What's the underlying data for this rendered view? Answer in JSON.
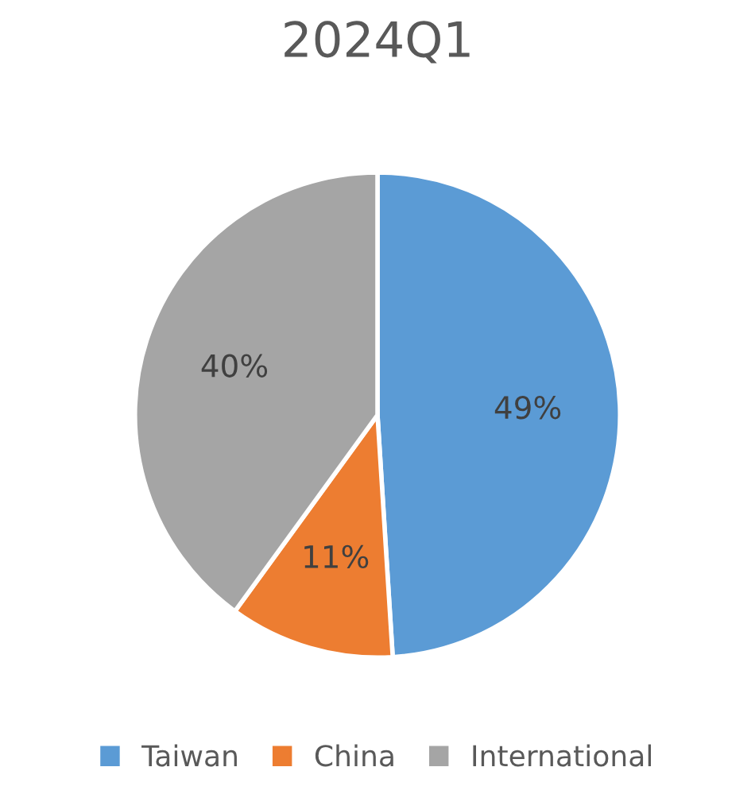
{
  "chart_data": {
    "type": "pie",
    "title": "2024Q1",
    "categories": [
      "Taiwan",
      "China",
      "International"
    ],
    "values": [
      49,
      11,
      40
    ],
    "colors": [
      "#5b9bd5",
      "#ed7d31",
      "#a5a5a5"
    ],
    "value_labels": [
      "49%",
      "11%",
      "40%"
    ],
    "legend": "bottom"
  }
}
